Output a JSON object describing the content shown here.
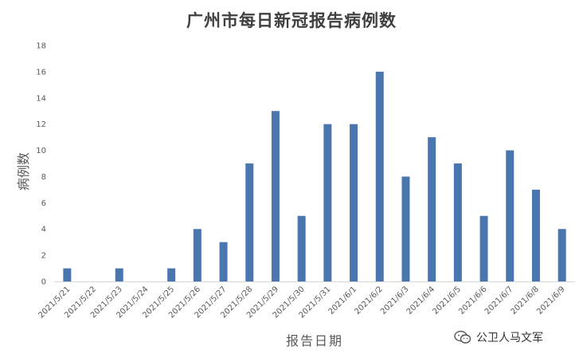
{
  "chart_data": {
    "type": "bar",
    "title": "广州市每日新冠报告病例数",
    "xlabel": "报告日期",
    "ylabel": "病例数",
    "categories": [
      "2021/5/21",
      "2021/5/22",
      "2021/5/23",
      "2021/5/24",
      "2021/5/25",
      "2021/5/26",
      "2021/5/27",
      "2021/5/28",
      "2021/5/29",
      "2021/5/30",
      "2021/5/31",
      "2021/6/1",
      "2021/6/2",
      "2021/6/3",
      "2021/6/4",
      "2021/6/5",
      "2021/6/6",
      "2021/6/7",
      "2021/6/8",
      "2021/6/9"
    ],
    "values": [
      1,
      0,
      1,
      0,
      1,
      4,
      3,
      9,
      13,
      5,
      12,
      12,
      16,
      8,
      11,
      9,
      5,
      10,
      7,
      4
    ],
    "ylim": [
      0,
      18
    ],
    "yticks": [
      0,
      2,
      4,
      6,
      8,
      10,
      12,
      14,
      16,
      18
    ],
    "bar_color": "#4a76b0",
    "grid": false,
    "legend": "none"
  },
  "watermark": {
    "text": "公卫人马文军",
    "icon": "wechat-icon"
  }
}
